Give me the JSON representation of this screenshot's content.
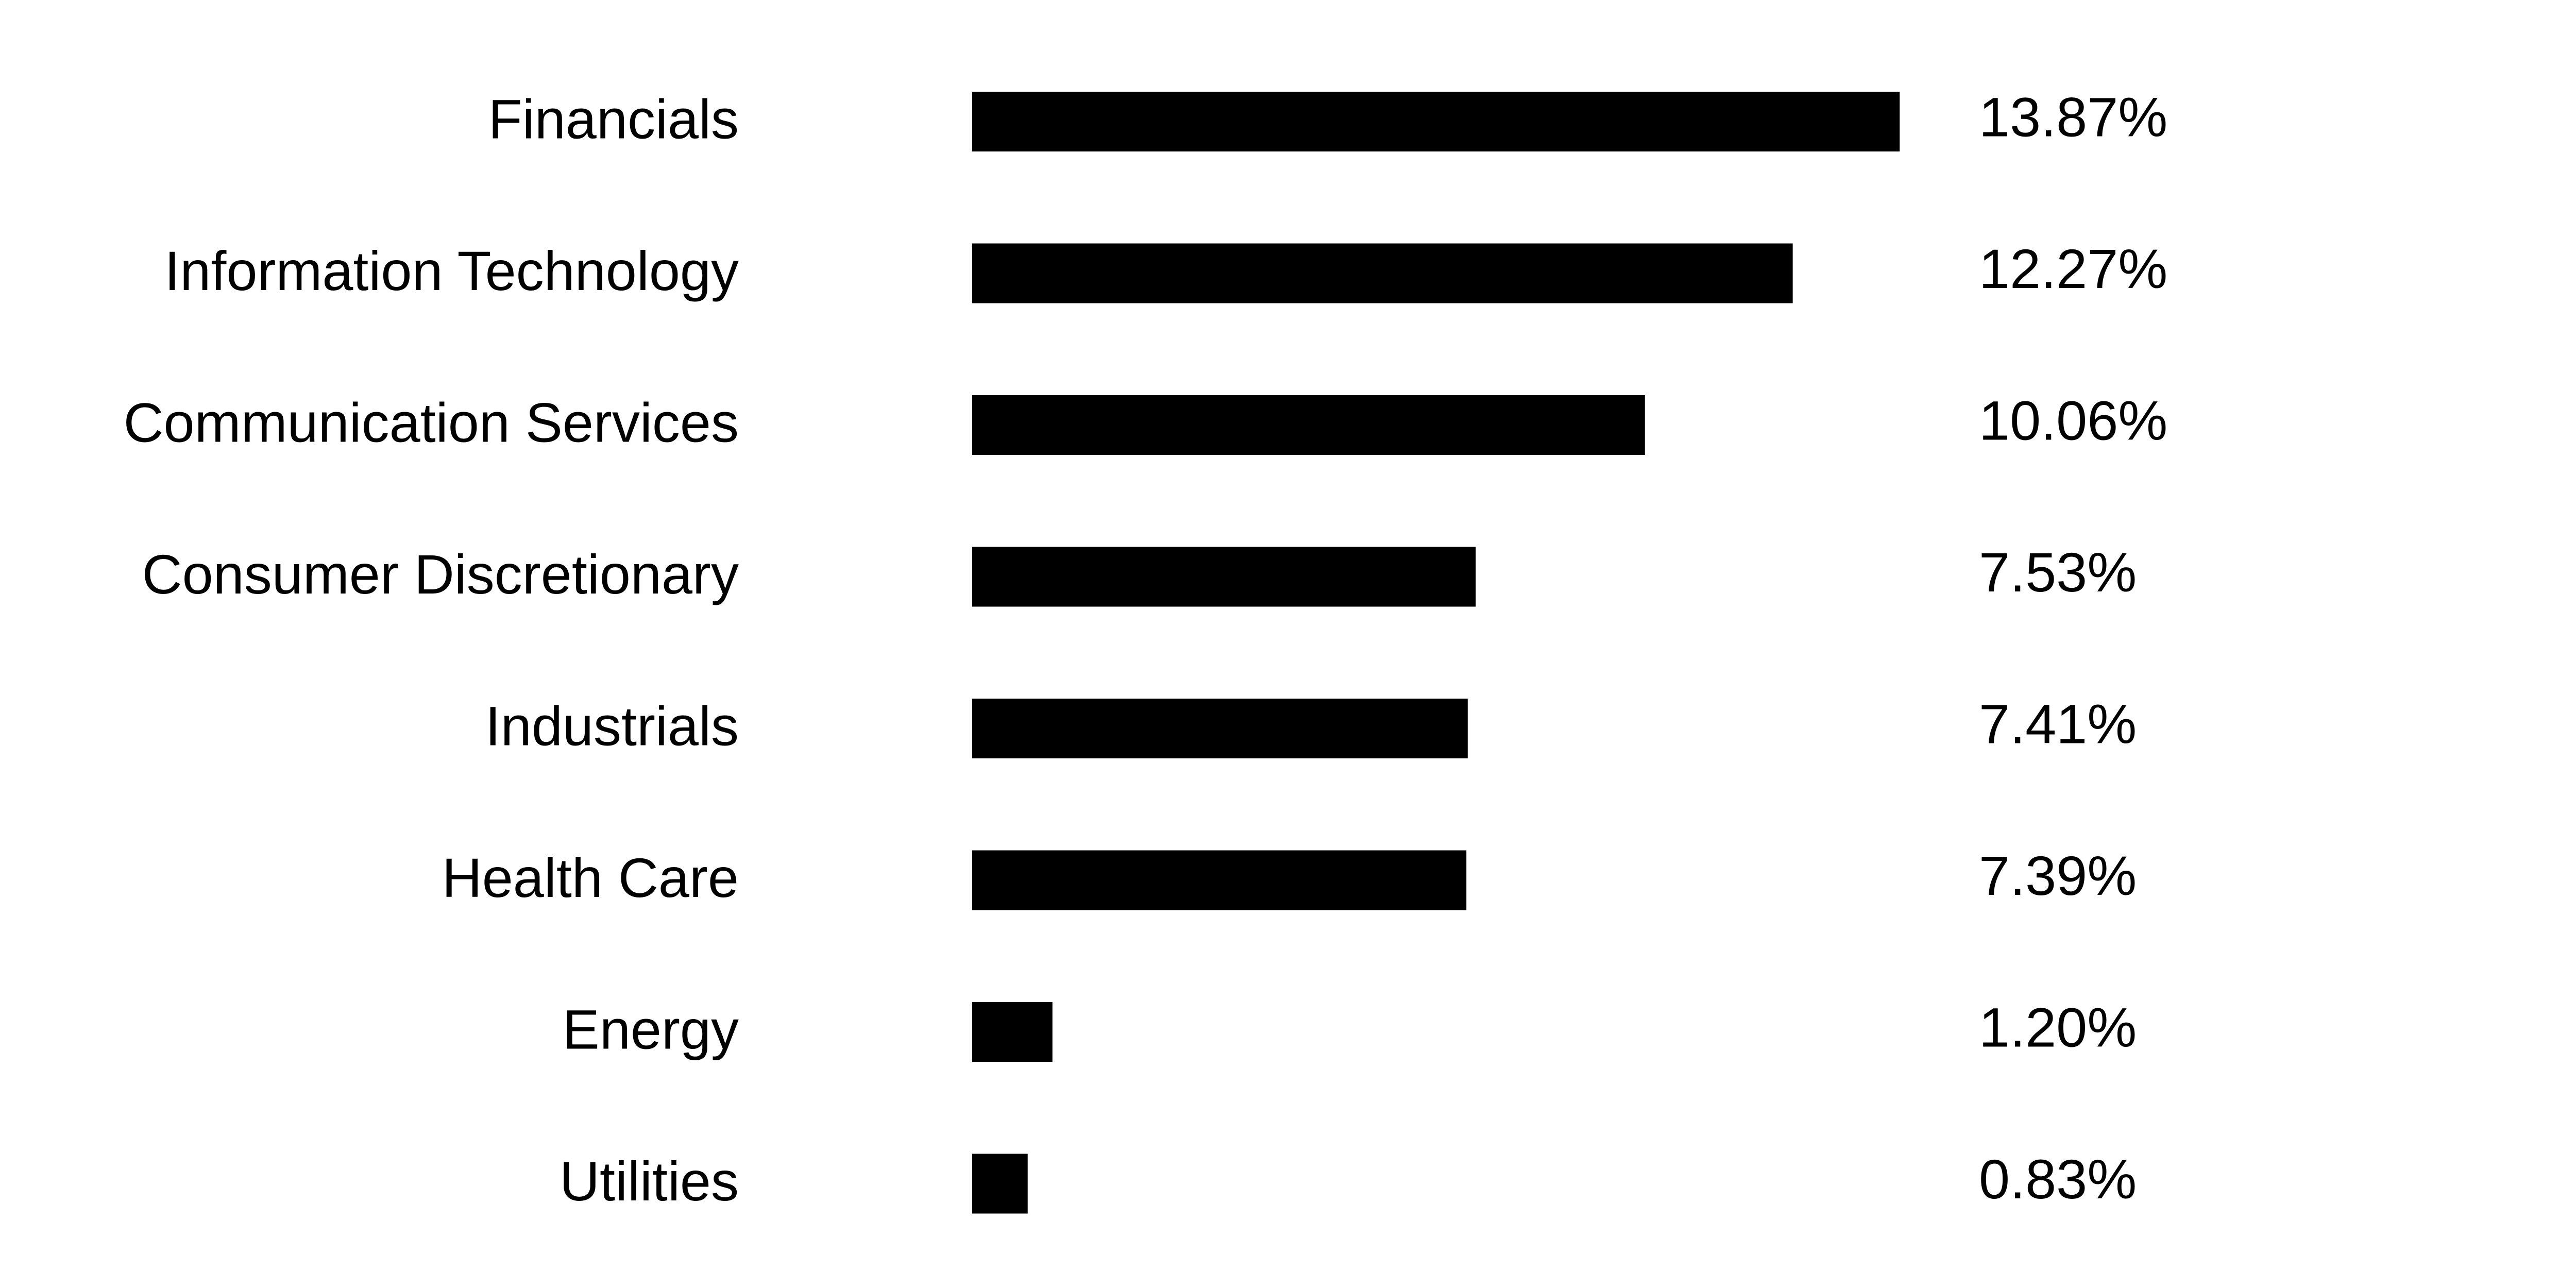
{
  "chart_data": {
    "type": "bar",
    "orientation": "horizontal",
    "categories": [
      "Financials",
      "Information Technology",
      "Communication Services",
      "Consumer Discretionary",
      "Industrials",
      "Health Care",
      "Energy",
      "Utilities"
    ],
    "values": [
      13.87,
      12.27,
      10.06,
      7.53,
      7.41,
      7.39,
      1.2,
      0.83
    ],
    "value_labels": [
      "13.87%",
      "12.27%",
      "10.06%",
      "7.53%",
      "7.41%",
      "7.39%",
      "1.20%",
      "0.83%"
    ],
    "color": "#000000"
  }
}
